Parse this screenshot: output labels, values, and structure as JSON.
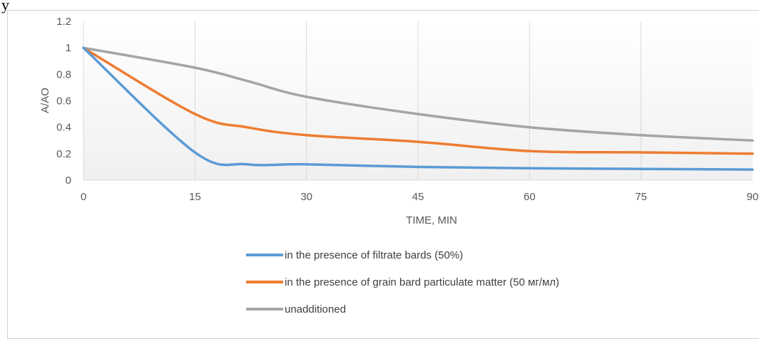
{
  "page": {
    "corner_char": "у"
  },
  "chart_data": {
    "type": "line",
    "title": "",
    "xlabel": "TIME, MIN",
    "ylabel": "A/AO",
    "xlim": [
      0,
      90
    ],
    "ylim": [
      0,
      1.2
    ],
    "xticks": [
      0,
      15,
      30,
      45,
      60,
      75,
      90
    ],
    "yticks": [
      0,
      0.2,
      0.4,
      0.6,
      0.8,
      1,
      1.2
    ],
    "ytick_labels": [
      "0",
      "0.2",
      "0.4",
      "0.6",
      "0.8",
      "1",
      "1.2"
    ],
    "grid": "vertical",
    "legend_position": "bottom",
    "x": [
      0,
      15,
      22,
      30,
      45,
      60,
      75,
      90
    ],
    "series": [
      {
        "name": "in the presence of filtrate bards (50%)",
        "color": "#5b9bd5",
        "values": [
          1,
          0.21,
          0.12,
          0.12,
          0.1,
          0.09,
          0.085,
          0.08
        ]
      },
      {
        "name": "in the presence of grain bard particulate matter (50 мг/мл)",
        "color": "#ed7d31",
        "values": [
          1,
          0.5,
          0.4,
          0.34,
          0.29,
          0.22,
          0.21,
          0.2
        ]
      },
      {
        "name": "unadditioned",
        "color": "#a5a5a5",
        "values": [
          1,
          0.85,
          0.75,
          0.63,
          0.5,
          0.4,
          0.34,
          0.3
        ]
      }
    ]
  }
}
